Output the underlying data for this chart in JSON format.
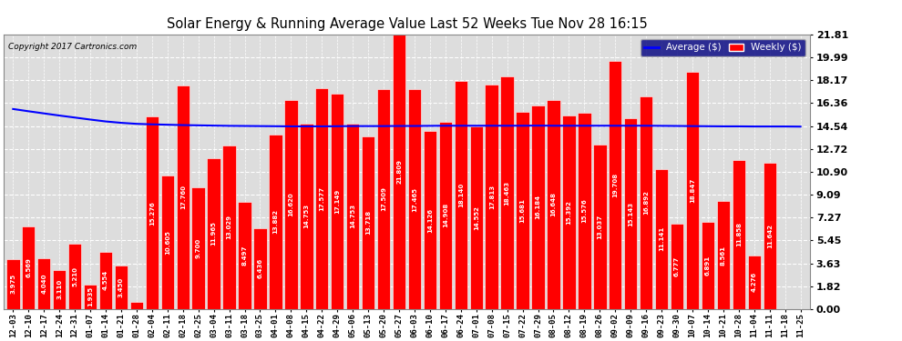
{
  "title": "Solar Energy & Running Average Value Last 52 Weeks Tue Nov 28 16:15",
  "copyright": "Copyright 2017 Cartronics.com",
  "bar_color": "#ff0000",
  "avg_line_color": "#0000ff",
  "background_color": "#ffffff",
  "plot_bg_color": "#dddddd",
  "grid_color": "#ffffff",
  "ylim": [
    0.0,
    21.81
  ],
  "yticks": [
    0.0,
    1.82,
    3.63,
    5.45,
    7.27,
    9.09,
    10.9,
    12.72,
    14.54,
    16.36,
    18.17,
    19.99,
    21.81
  ],
  "categories": [
    "12-03",
    "12-10",
    "12-17",
    "12-24",
    "12-31",
    "01-07",
    "01-14",
    "01-21",
    "01-28",
    "02-04",
    "02-11",
    "02-18",
    "02-25",
    "03-04",
    "03-11",
    "03-18",
    "03-25",
    "04-01",
    "04-08",
    "04-15",
    "04-22",
    "04-29",
    "05-06",
    "05-13",
    "05-20",
    "05-27",
    "06-03",
    "06-10",
    "06-17",
    "06-24",
    "07-01",
    "07-08",
    "07-15",
    "07-22",
    "07-29",
    "08-05",
    "08-12",
    "08-19",
    "08-26",
    "09-02",
    "09-09",
    "09-16",
    "09-23",
    "09-30",
    "10-07",
    "10-14",
    "10-21",
    "10-28",
    "11-04",
    "11-11",
    "11-18",
    "11-25"
  ],
  "weekly_values": [
    3.975,
    6.569,
    4.04,
    3.11,
    5.21,
    1.935,
    4.554,
    3.45,
    0.554,
    15.276,
    10.605,
    17.76,
    9.7,
    11.965,
    13.029,
    8.497,
    6.436,
    13.882,
    16.62,
    14.753,
    17.577,
    17.149,
    14.753,
    13.718,
    17.509,
    21.809,
    17.465,
    14.126,
    14.908,
    18.14,
    14.552,
    17.813,
    18.463,
    15.681,
    16.184,
    16.648,
    15.392,
    15.576,
    13.037,
    19.708,
    15.143,
    16.892,
    11.141,
    6.777,
    18.847,
    6.891,
    8.561,
    11.858,
    4.276,
    11.642,
    0.0,
    0.0
  ],
  "avg_values": [
    15.9,
    15.72,
    15.55,
    15.38,
    15.22,
    15.06,
    14.91,
    14.8,
    14.72,
    14.68,
    14.65,
    14.62,
    14.6,
    14.58,
    14.56,
    14.55,
    14.54,
    14.53,
    14.52,
    14.52,
    14.52,
    14.53,
    14.54,
    14.54,
    14.54,
    14.55,
    14.55,
    14.56,
    14.57,
    14.57,
    14.57,
    14.57,
    14.57,
    14.57,
    14.58,
    14.57,
    14.57,
    14.57,
    14.57,
    14.57,
    14.57,
    14.57,
    14.56,
    14.55,
    14.54,
    14.53,
    14.52,
    14.52,
    14.51,
    14.51,
    14.51,
    14.5
  ],
  "legend_bg": "#000080",
  "legend_text_color": "#ffffff",
  "value_label_color": "#ffffff",
  "value_label_fontsize": 5.0,
  "xtick_fontsize": 6.5,
  "ytick_fontsize": 8,
  "title_fontsize": 10.5,
  "copyright_fontsize": 6.5
}
